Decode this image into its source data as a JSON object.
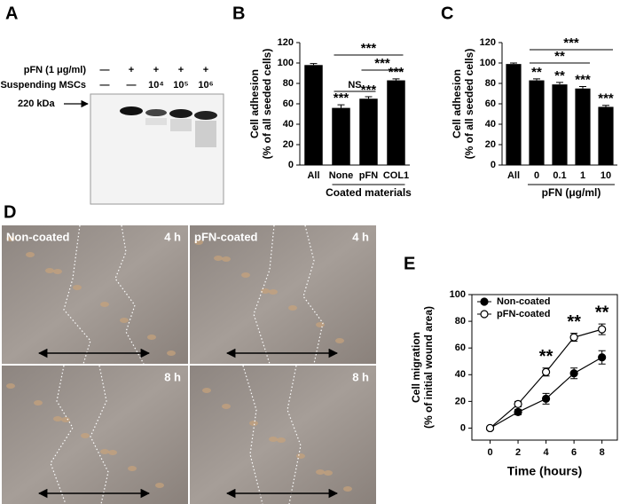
{
  "panels": {
    "A": {
      "label": "A",
      "rows": [
        {
          "name": "pFN (1 μg/ml)",
          "marks": [
            "—",
            "+",
            "+",
            "+",
            "+"
          ]
        },
        {
          "name": "Suspending MSCs",
          "marks": [
            "—",
            "—",
            "10⁴",
            "10⁵",
            "10⁶"
          ]
        }
      ],
      "marker": "220 kDa"
    },
    "D": {
      "label": "D",
      "images": [
        {
          "condition": "Non-coated",
          "time": "4 h"
        },
        {
          "condition": "pFN-coated",
          "time": "4 h"
        },
        {
          "time": "8 h"
        },
        {
          "time": "8 h"
        }
      ]
    }
  },
  "chart_data": [
    {
      "type": "bar",
      "panel": "B",
      "y_label": [
        "Cell adhesion",
        "(% of all seeded cells)"
      ],
      "x_label": "Coated materials",
      "categories": [
        "All",
        "None",
        "pFN",
        "COL1"
      ],
      "values": [
        98,
        56,
        65,
        83
      ],
      "errors": [
        1.5,
        3,
        2,
        1.5
      ],
      "color": "#000000",
      "ylim": [
        0,
        120
      ],
      "yticks": [
        0,
        20,
        40,
        60,
        80,
        100,
        120
      ],
      "significance": [
        {
          "text": "***",
          "category": "None"
        },
        {
          "text": "***",
          "category": "pFN"
        },
        {
          "text": "***",
          "category": "COL1"
        }
      ],
      "brackets": [
        {
          "text": "NS",
          "from": "None",
          "to": "pFN"
        },
        {
          "text": "***",
          "from": "pFN",
          "to": "COL1"
        },
        {
          "text": "***",
          "from": "None",
          "to": "COL1"
        }
      ]
    },
    {
      "type": "bar",
      "panel": "C",
      "y_label": [
        "Cell adhesion",
        "(% of all seeded cells)"
      ],
      "x_label": "pFN (μg/ml)",
      "categories": [
        "All",
        "0",
        "0.1",
        "1",
        "10"
      ],
      "values": [
        99,
        83,
        79,
        75,
        57
      ],
      "errors": [
        1,
        1.5,
        2,
        2,
        1.5
      ],
      "color": "#000000",
      "ylim": [
        0,
        120
      ],
      "yticks": [
        0,
        20,
        40,
        60,
        80,
        100,
        120
      ],
      "significance": [
        {
          "text": "**",
          "category": "0"
        },
        {
          "text": "**",
          "category": "0.1"
        },
        {
          "text": "***",
          "category": "1"
        },
        {
          "text": "***",
          "category": "10"
        }
      ],
      "brackets": [
        {
          "text": "**",
          "from": "0",
          "to": "1"
        },
        {
          "text": "***",
          "from": "0",
          "to": "10"
        }
      ]
    },
    {
      "type": "line",
      "panel": "E",
      "y_label": [
        "Cell migration",
        "(% of initial wound area)"
      ],
      "x_label": "Time (hours)",
      "x": [
        0,
        2,
        4,
        6,
        8
      ],
      "series": [
        {
          "name": "Non-coated",
          "color": "#000000",
          "values": [
            0,
            12,
            22,
            41,
            53
          ],
          "errors": [
            1,
            2,
            4,
            4,
            5
          ]
        },
        {
          "name": "pFN-coated",
          "color": "#ffffff",
          "values": [
            0,
            18,
            42,
            68,
            74
          ],
          "errors": [
            1,
            2,
            3,
            3,
            4
          ]
        }
      ],
      "xlim": [
        -1.3,
        9.1
      ],
      "xticks": [
        0,
        2,
        4,
        6,
        8
      ],
      "ylim": [
        -9,
        100
      ],
      "yticks": [
        0,
        20,
        40,
        60,
        80,
        100
      ],
      "legend": "upper left",
      "annotations": [
        {
          "text": "**",
          "x": 4
        },
        {
          "text": "**",
          "x": 6
        },
        {
          "text": "**",
          "x": 8
        }
      ]
    }
  ]
}
